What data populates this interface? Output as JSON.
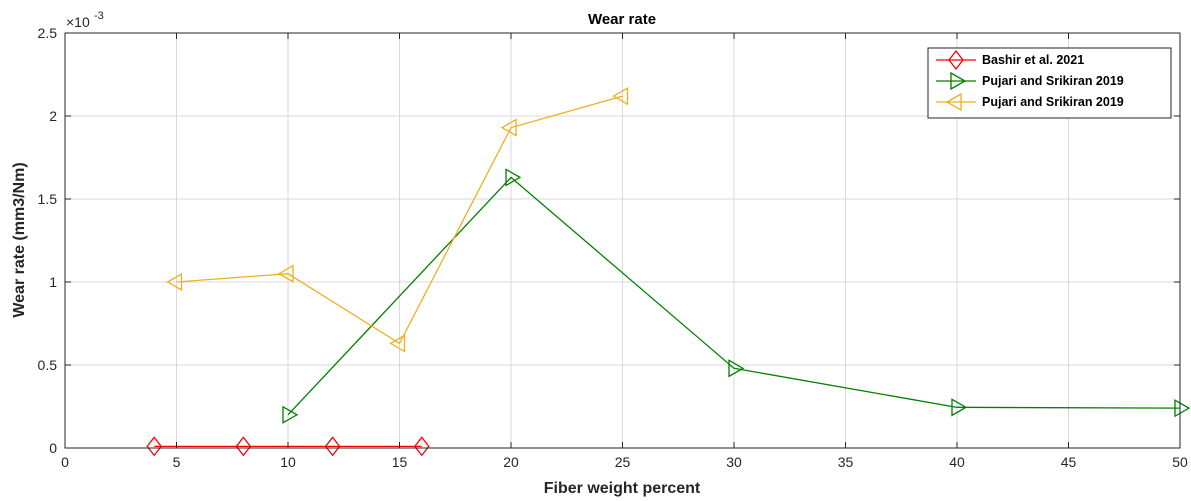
{
  "chart_data": {
    "type": "line",
    "title": "Wear rate",
    "xlabel": "Fiber weight percent",
    "ylabel": "Wear rate (mm3/Nm)",
    "y_multiplier": {
      "base": "×10",
      "exponent": "-3"
    },
    "xlim": [
      0,
      50
    ],
    "ylim": [
      0,
      2.5
    ],
    "xticks": [
      0,
      5,
      10,
      15,
      20,
      25,
      30,
      35,
      40,
      45,
      50
    ],
    "yticks": [
      0,
      0.5,
      1,
      1.5,
      2,
      2.5
    ],
    "ytick_labels": [
      "0",
      "0.5",
      "1",
      "1.5",
      "2",
      "2.5"
    ],
    "grid": true,
    "legend_position": "top-right",
    "series": [
      {
        "name": "Bashir et al. 2021",
        "color": "#ff0000",
        "marker": "diamond",
        "x": [
          4,
          8,
          12,
          16
        ],
        "y": [
          0.01,
          0.01,
          0.01,
          0.01
        ]
      },
      {
        "name": "Pujari and Srikiran 2019",
        "color": "#008000",
        "marker": "triangle-right",
        "x": [
          10,
          20,
          30,
          40,
          50
        ],
        "y": [
          0.2,
          1.63,
          0.48,
          0.245,
          0.24
        ]
      },
      {
        "name": "Pujari and Srikiran 2019",
        "color": "#edb120",
        "marker": "triangle-left",
        "x": [
          5,
          10,
          15,
          20,
          25
        ],
        "y": [
          1.0,
          1.05,
          0.63,
          1.93,
          2.12
        ]
      }
    ]
  }
}
